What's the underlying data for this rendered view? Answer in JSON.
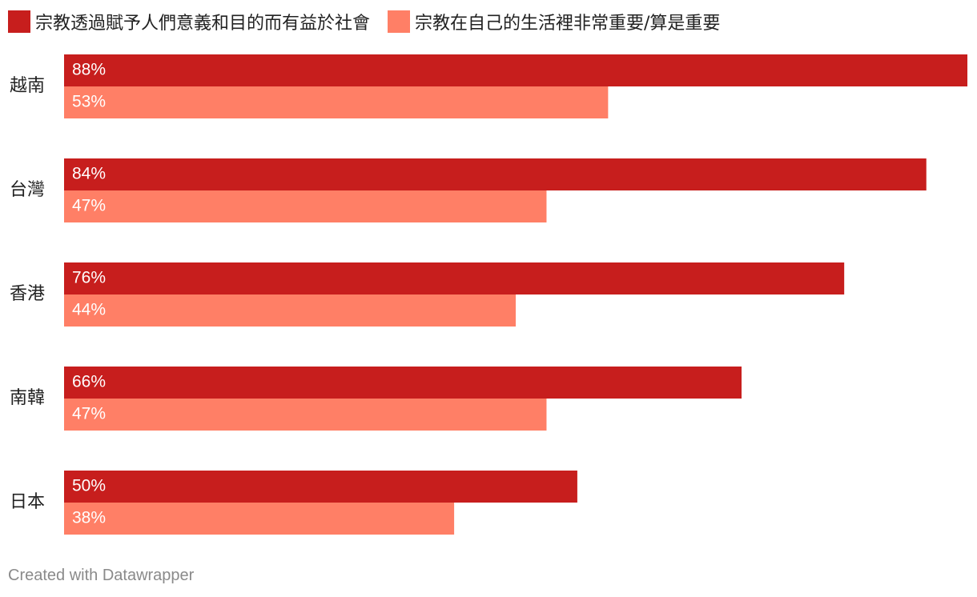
{
  "chart_data": {
    "type": "bar",
    "orientation": "horizontal",
    "categories": [
      "越南",
      "台灣",
      "香港",
      "南韓",
      "日本"
    ],
    "series": [
      {
        "name": "宗教透過賦予人們意義和目的而有益於社會",
        "values": [
          88,
          84,
          76,
          66,
          50
        ],
        "color": "#c71e1d"
      },
      {
        "name": "宗教在自己的生活裡非常重要/算是重要",
        "values": [
          53,
          47,
          44,
          47,
          38
        ],
        "color": "#ff7f66"
      }
    ],
    "value_suffix": "%",
    "xlim": [
      0,
      88
    ],
    "grid": false,
    "legend_position": "top-left",
    "title": "",
    "xlabel": "",
    "ylabel": ""
  },
  "footer": {
    "credit": "Created with Datawrapper"
  }
}
